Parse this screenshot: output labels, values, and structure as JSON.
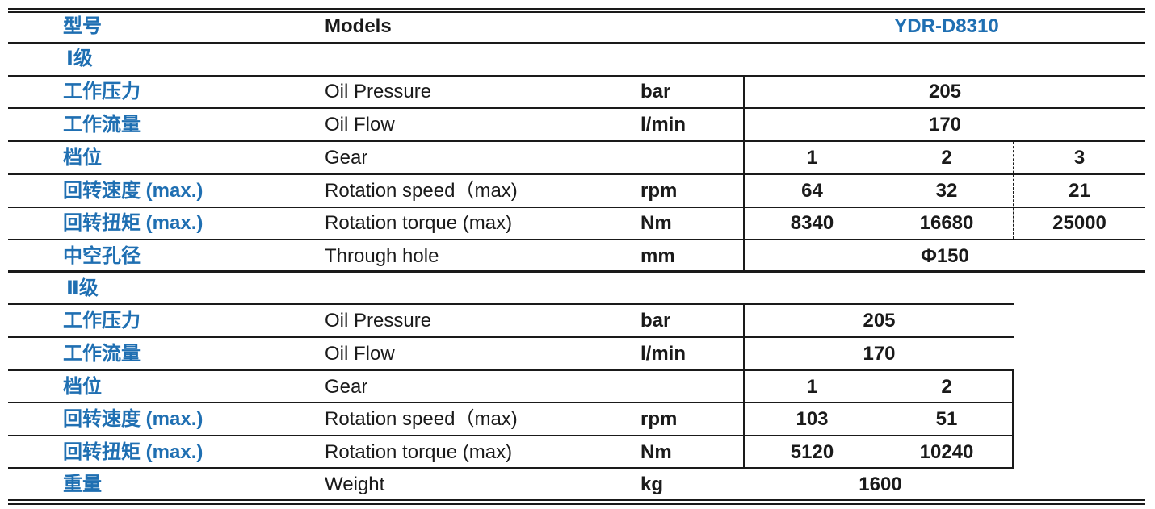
{
  "header": {
    "cn": "型号",
    "en": "Models",
    "model": "YDR-D8310"
  },
  "level1": {
    "title": "Ⅰ级",
    "oil_pressure": {
      "cn": "工作压力",
      "en": "Oil Pressure",
      "unit": "bar",
      "value": "205"
    },
    "oil_flow": {
      "cn": "工作流量",
      "en": "Oil Flow",
      "unit": "l/min",
      "value": "170"
    },
    "gear": {
      "cn": "档位",
      "en": "Gear",
      "values": [
        "1",
        "2",
        "3"
      ]
    },
    "speed": {
      "cn": "回转速度 (max.)",
      "en": "Rotation speed（max)",
      "unit": "rpm",
      "values": [
        "64",
        "32",
        "21"
      ]
    },
    "torque": {
      "cn": "回转扭矩 (max.)",
      "en": "Rotation torque (max)",
      "unit": "Nm",
      "values": [
        "8340",
        "16680",
        "25000"
      ]
    },
    "hole": {
      "cn": "中空孔径",
      "en": "Through hole",
      "unit": "mm",
      "value": "Φ150"
    }
  },
  "level2": {
    "title": "Ⅱ级",
    "oil_pressure": {
      "cn": "工作压力",
      "en": "Oil Pressure",
      "unit": "bar",
      "value": "205"
    },
    "oil_flow": {
      "cn": "工作流量",
      "en": "Oil Flow",
      "unit": "l/min",
      "value": "170"
    },
    "gear": {
      "cn": "档位",
      "en": "Gear",
      "values": [
        "1",
        "2"
      ]
    },
    "speed": {
      "cn": "回转速度 (max.)",
      "en": "Rotation speed（max)",
      "unit": "rpm",
      "values": [
        "103",
        "51"
      ]
    },
    "torque": {
      "cn": "回转扭矩 (max.)",
      "en": "Rotation torque (max)",
      "unit": "Nm",
      "values": [
        "5120",
        "10240"
      ]
    }
  },
  "weight": {
    "cn": "重量",
    "en": "Weight",
    "unit": "kg",
    "value": "1600"
  }
}
